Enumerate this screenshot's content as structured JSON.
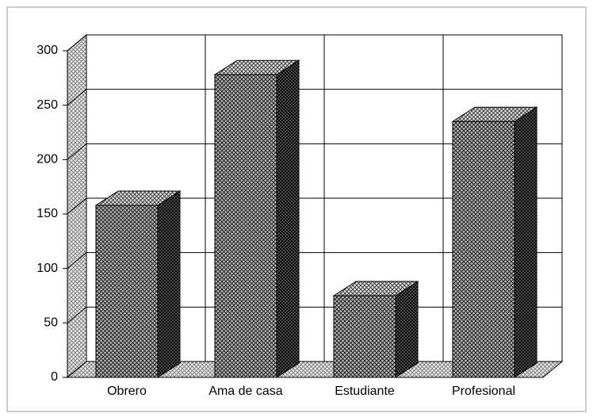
{
  "chart_data": {
    "type": "bar3d",
    "categories": [
      "Obrero",
      "Ama de casa",
      "Estudiante",
      "Profesional"
    ],
    "values": [
      158,
      278,
      75,
      235
    ],
    "ylim": [
      0,
      300
    ],
    "yticks": [
      0,
      50,
      100,
      150,
      200,
      250,
      300
    ],
    "grid": true
  }
}
